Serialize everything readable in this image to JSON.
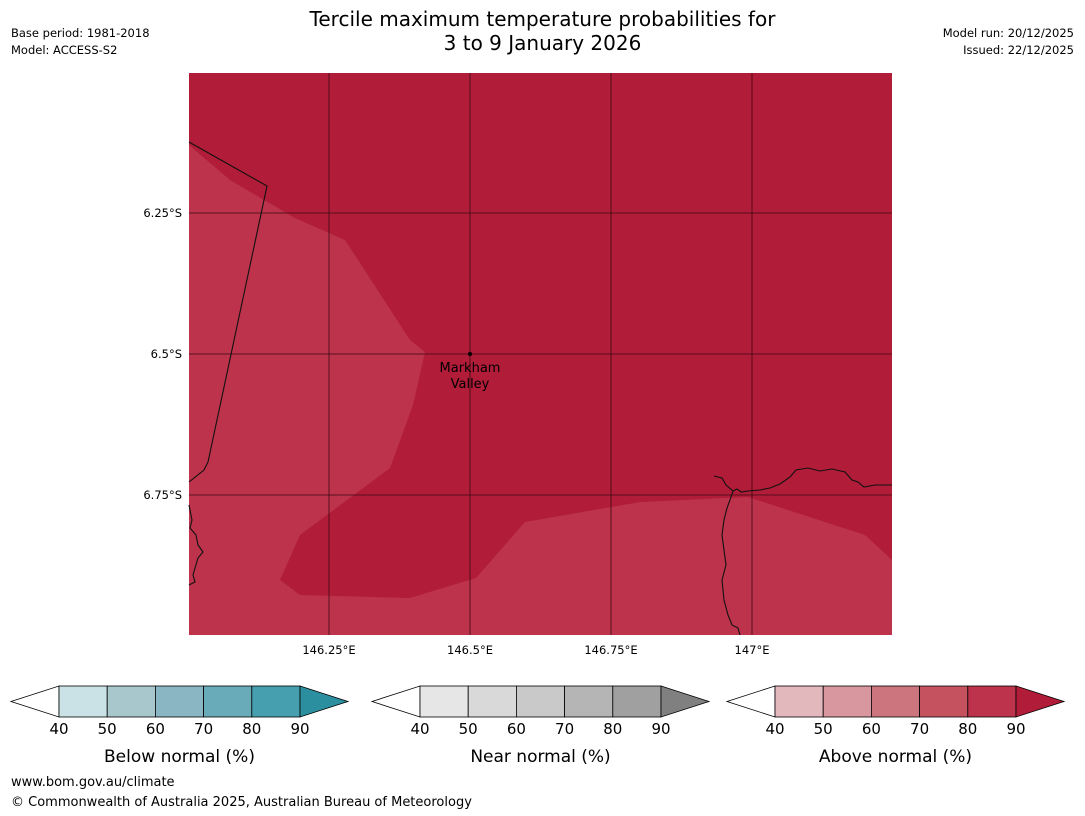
{
  "header": {
    "title_line1": "Tercile maximum temperature probabilities for",
    "title_line2": "3 to 9 January 2026",
    "base_period": "Base period: 1981-2018",
    "model": "Model: ACCESS-S2",
    "model_run": "Model run: 20/12/2025",
    "issued": "Issued: 22/12/2025"
  },
  "map": {
    "latitude_labels": [
      "6.25°S",
      "6.5°S",
      "6.75°S"
    ],
    "longitude_labels": [
      "146.25°E",
      "146.5°E",
      "146.75°E",
      "147°E"
    ],
    "place": {
      "name_line1": "Markham",
      "name_line2": "Valley"
    },
    "colors": {
      "high": "#b11c38",
      "mid": "#bc334b",
      "ocean": "#b11c38"
    }
  },
  "colorbars": [
    {
      "title": "Below normal (%)",
      "ticks": [
        "40",
        "50",
        "60",
        "70",
        "80",
        "90"
      ],
      "colors": [
        "#cae2e6",
        "#a7c7cc",
        "#89b6c2",
        "#6aabba",
        "#469fae",
        "#2b8fa0"
      ]
    },
    {
      "title": "Near normal (%)",
      "ticks": [
        "40",
        "50",
        "60",
        "70",
        "80",
        "90"
      ],
      "colors": [
        "#e6e6e6",
        "#d9d9d9",
        "#c9c9c9",
        "#b5b5b5",
        "#a0a0a0",
        "#808080"
      ]
    },
    {
      "title": "Above normal (%)",
      "ticks": [
        "40",
        "50",
        "60",
        "70",
        "80",
        "90"
      ],
      "colors": [
        "#e3b8bd",
        "#d8969e",
        "#cc757f",
        "#c4535f",
        "#bc334b",
        "#b11c38"
      ]
    }
  ],
  "footer": {
    "url": "www.bom.gov.au/climate",
    "copyright": "© Commonwealth of Australia 2025, Australian Bureau of Meteorology"
  }
}
